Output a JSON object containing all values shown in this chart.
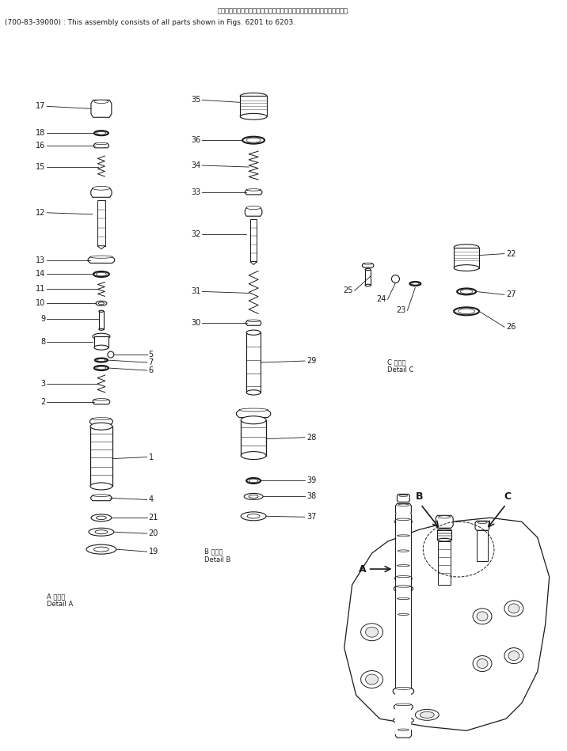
{
  "title_line1": "このアセンブリの構成部品は第６２０１図から第６２０３図まで含みます.",
  "title_line2": "(700-83-39000) : This assembly consists of all parts shown in Figs. 6201 to 6203.",
  "bg": "#ffffff",
  "lc": "#1a1a1a",
  "detail_a_text": "A 詳細図\nDetail A",
  "detail_b_text": "B 詳細図\nDetail B",
  "detail_c_text": "C 詳細図\nDetail C"
}
